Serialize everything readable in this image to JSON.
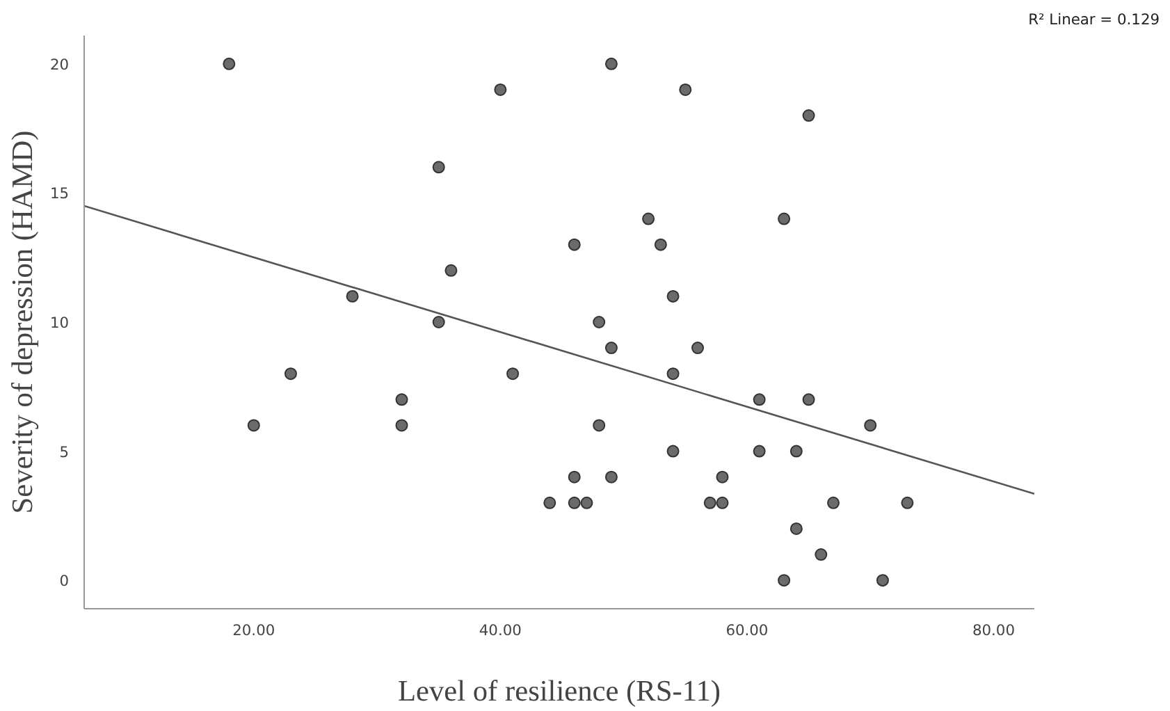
{
  "chart_data": {
    "type": "scatter",
    "xlabel": "Level of resilience (RS-11)",
    "ylabel": "Severity of depression (HAMD)",
    "annotations": [
      "R² Linear = 0.129"
    ],
    "xlim": [
      6.25,
      83.3
    ],
    "ylim": [
      -1.1,
      21.1
    ],
    "xticks": [
      {
        "value": 20,
        "label": "20.00"
      },
      {
        "value": 40,
        "label": "40.00"
      },
      {
        "value": 60,
        "label": "60.00"
      },
      {
        "value": 80,
        "label": "80.00"
      }
    ],
    "yticks": [
      0,
      5,
      10,
      15,
      20
    ],
    "grid": false,
    "series": [
      {
        "marker": "circle",
        "color": "#6b6b6b",
        "x": [
          18,
          40,
          49,
          55,
          65,
          35,
          52,
          63,
          46,
          53,
          36,
          28,
          54,
          35,
          48,
          49,
          56,
          23,
          41,
          54,
          32,
          61,
          65,
          20,
          32,
          48,
          70,
          54,
          61,
          64,
          46,
          49,
          58,
          44,
          46,
          47,
          57,
          58,
          67,
          73,
          64,
          66,
          63,
          71
        ],
        "values": [
          20,
          19,
          20,
          19,
          18,
          16,
          14,
          14,
          13,
          13,
          12,
          11,
          11,
          10,
          10,
          9,
          9,
          8,
          8,
          8,
          7,
          7,
          7,
          6,
          6,
          6,
          6,
          5,
          5,
          5,
          4,
          4,
          4,
          3,
          3,
          3,
          3,
          3,
          3,
          3,
          2,
          1,
          0,
          0
        ]
      },
      {
        "type": "line",
        "color": "#555555",
        "x": [
          6.25,
          83.3
        ],
        "values": [
          14.5,
          3.35
        ]
      }
    ]
  }
}
